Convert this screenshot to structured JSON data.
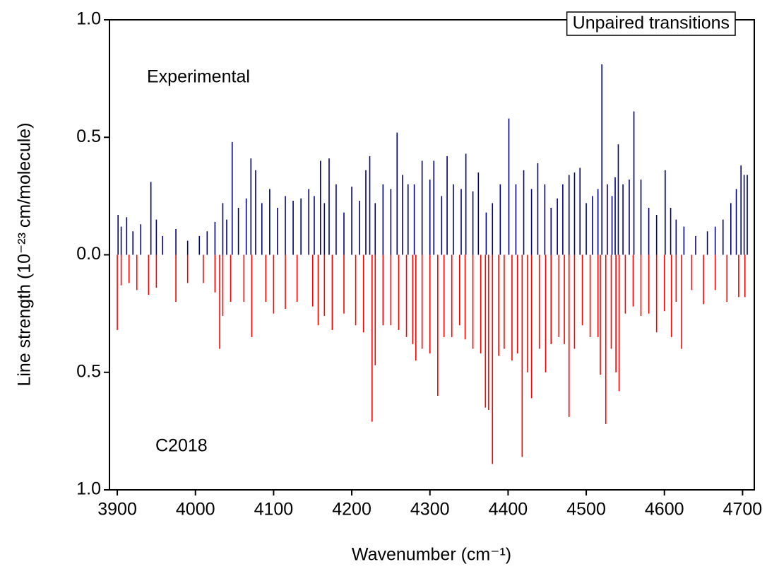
{
  "chart_data": {
    "type": "stick",
    "title": "Unpaired transitions",
    "x_label": "Wavenumber (cm⁻¹)",
    "y_label": "Line strength (10⁻²³ cm/molecule)",
    "annotations": [
      "Experimental",
      "C2018"
    ],
    "xlim": [
      3890,
      4715
    ],
    "ylim": [
      -1,
      1
    ],
    "xticks": [
      3900,
      4000,
      4100,
      4200,
      4300,
      4400,
      4500,
      4600,
      4700
    ],
    "yticks": [
      {
        "value": -1,
        "label": "1.0"
      },
      {
        "value": -0.5,
        "label": "0.5"
      },
      {
        "value": 0,
        "label": "0.0"
      },
      0.5,
      {
        "value": 1,
        "label": "1.0"
      }
    ],
    "series": [
      {
        "name": "Experimental",
        "color": "#000080",
        "x": [
          3901,
          3905,
          3912,
          3920,
          3930,
          3943,
          3950,
          3958,
          3975,
          3990,
          4005,
          4015,
          4025,
          4035,
          4040,
          4047,
          4055,
          4065,
          4071,
          4077,
          4085,
          4095,
          4105,
          4115,
          4125,
          4135,
          4145,
          4152,
          4160,
          4165,
          4171,
          4180,
          4190,
          4200,
          4210,
          4218,
          4223,
          4230,
          4240,
          4250,
          4258,
          4265,
          4272,
          4280,
          4290,
          4300,
          4305,
          4315,
          4322,
          4330,
          4340,
          4346,
          4355,
          4362,
          4372,
          4380,
          4390,
          4401,
          4410,
          4420,
          4430,
          4438,
          4447,
          4455,
          4463,
          4470,
          4478,
          4485,
          4492,
          4500,
          4508,
          4515,
          4520,
          4527,
          4533,
          4537,
          4541,
          4547,
          4555,
          4561,
          4570,
          4580,
          4590,
          4601,
          4608,
          4615,
          4625,
          4640,
          4655,
          4665,
          4675,
          4685,
          4692,
          4698,
          4702,
          4706
        ],
        "values": [
          0.17,
          0.12,
          0.16,
          0.1,
          0.13,
          0.31,
          0.15,
          0.08,
          0.11,
          0.06,
          0.08,
          0.1,
          0.14,
          0.22,
          0.15,
          0.48,
          0.2,
          0.24,
          0.41,
          0.36,
          0.22,
          0.28,
          0.2,
          0.25,
          0.23,
          0.24,
          0.28,
          0.25,
          0.4,
          0.22,
          0.41,
          0.3,
          0.18,
          0.29,
          0.23,
          0.36,
          0.42,
          0.22,
          0.3,
          0.28,
          0.52,
          0.34,
          0.3,
          0.3,
          0.4,
          0.32,
          0.4,
          0.25,
          0.42,
          0.3,
          0.28,
          0.43,
          0.27,
          0.35,
          0.18,
          0.22,
          0.3,
          0.58,
          0.3,
          0.36,
          0.28,
          0.39,
          0.3,
          0.2,
          0.24,
          0.3,
          0.34,
          0.35,
          0.37,
          0.22,
          0.25,
          0.28,
          0.81,
          0.3,
          0.25,
          0.33,
          0.47,
          0.3,
          0.32,
          0.61,
          0.32,
          0.2,
          0.17,
          0.36,
          0.2,
          0.15,
          0.12,
          0.08,
          0.1,
          0.12,
          0.15,
          0.22,
          0.28,
          0.38,
          0.34,
          0.34
        ]
      },
      {
        "name": "C2018",
        "color": "#ff0000",
        "x": [
          3900,
          3905,
          3915,
          3925,
          3940,
          3950,
          3975,
          3990,
          4010,
          4025,
          4031,
          4035,
          4045,
          4062,
          4072,
          4090,
          4100,
          4115,
          4130,
          4150,
          4157,
          4165,
          4175,
          4190,
          4205,
          4215,
          4226,
          4230,
          4240,
          4250,
          4260,
          4270,
          4278,
          4282,
          4290,
          4300,
          4310,
          4318,
          4328,
          4338,
          4345,
          4355,
          4365,
          4371,
          4375,
          4380,
          4388,
          4395,
          4405,
          4412,
          4418,
          4425,
          4430,
          4440,
          4448,
          4455,
          4465,
          4472,
          4478,
          4485,
          4495,
          4505,
          4515,
          4518,
          4525,
          4532,
          4538,
          4542,
          4550,
          4560,
          4570,
          4580,
          4590,
          4600,
          4609,
          4615,
          4622,
          4635,
          4650,
          4665,
          4680,
          4695,
          4703
        ],
        "values": [
          -0.32,
          -0.13,
          -0.12,
          -0.15,
          -0.17,
          -0.14,
          -0.2,
          -0.12,
          -0.12,
          -0.16,
          -0.4,
          -0.26,
          -0.2,
          -0.2,
          -0.35,
          -0.2,
          -0.25,
          -0.23,
          -0.2,
          -0.22,
          -0.3,
          -0.26,
          -0.32,
          -0.25,
          -0.3,
          -0.33,
          -0.71,
          -0.47,
          -0.3,
          -0.3,
          -0.32,
          -0.35,
          -0.38,
          -0.45,
          -0.4,
          -0.42,
          -0.6,
          -0.35,
          -0.35,
          -0.3,
          -0.36,
          -0.4,
          -0.42,
          -0.65,
          -0.66,
          -0.89,
          -0.43,
          -0.4,
          -0.45,
          -0.42,
          -0.86,
          -0.5,
          -0.61,
          -0.4,
          -0.5,
          -0.38,
          -0.35,
          -0.38,
          -0.69,
          -0.4,
          -0.3,
          -0.35,
          -0.35,
          -0.51,
          -0.72,
          -0.4,
          -0.5,
          -0.58,
          -0.25,
          -0.22,
          -0.26,
          -0.25,
          -0.33,
          -0.24,
          -0.35,
          -0.2,
          -0.4,
          -0.15,
          -0.21,
          -0.15,
          -0.2,
          -0.18,
          -0.18
        ]
      }
    ]
  }
}
